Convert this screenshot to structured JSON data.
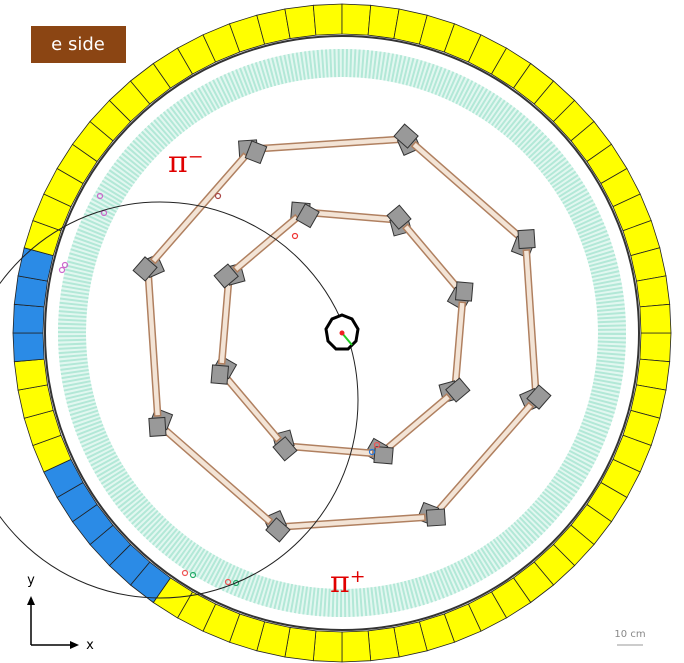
{
  "header": {
    "label": "e side"
  },
  "particles": {
    "pi_minus": "π⁻",
    "pi_plus": "π⁺"
  },
  "axes": {
    "x": "x",
    "y": "y"
  },
  "scale_bar": "10 cm"
}
